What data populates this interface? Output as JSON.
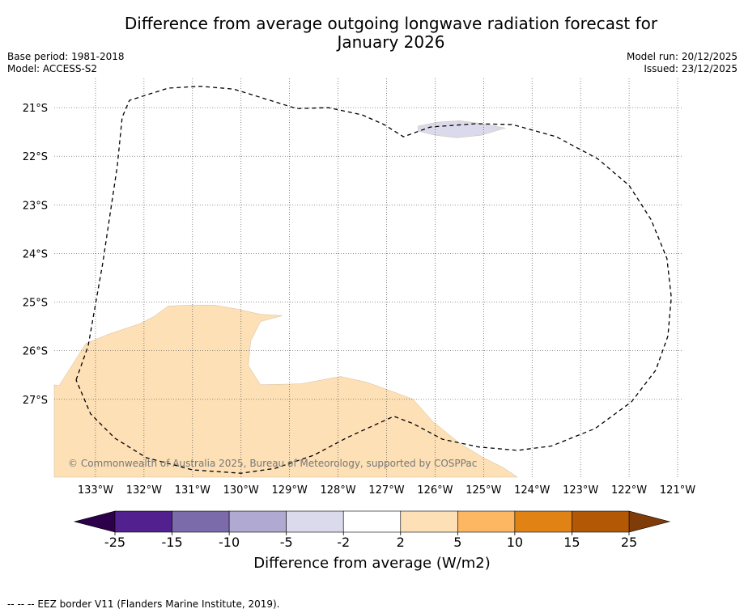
{
  "chart_data": {
    "type": "heatmap",
    "title_line1": "Difference from average outgoing longwave radiation forecast for",
    "title_line2": "January 2026",
    "base_period": "Base period: 1981-2018",
    "model": "Model: ACCESS-S2",
    "model_run": "Model run: 20/12/2025",
    "issued": "Issued: 23/12/2025",
    "lon_range": [
      -133.85,
      -120.9
    ],
    "lat_range": [
      -28.6,
      -20.4
    ],
    "lon_ticks": [
      -133,
      -132,
      -131,
      -130,
      -129,
      -128,
      -127,
      -126,
      -125,
      -124,
      -123,
      -122,
      -121
    ],
    "lon_tick_labels": [
      "133°W",
      "132°W",
      "131°W",
      "130°W",
      "129°W",
      "128°W",
      "127°W",
      "126°W",
      "125°W",
      "124°W",
      "123°W",
      "122°W",
      "121°W"
    ],
    "lat_ticks": [
      -21,
      -22,
      -23,
      -24,
      -25,
      -26,
      -27
    ],
    "lat_tick_labels": [
      "21°S",
      "22°S",
      "23°S",
      "24°S",
      "25°S",
      "26°S",
      "27°S"
    ],
    "credit": "© Commonwealth of Australia 2025, Bureau of Meteorology, supported by COSPPac",
    "colorbar": {
      "label": "Difference from average (W/m2)",
      "bounds": [
        -25,
        -15,
        -10,
        -5,
        -2,
        2,
        5,
        10,
        15,
        25
      ],
      "tick_labels": [
        "-25",
        "-15",
        "-10",
        "-5",
        "-2",
        "2",
        "5",
        "10",
        "15",
        "25"
      ],
      "colors": [
        "#53218f",
        "#7c6bab",
        "#b0a9d1",
        "#dadaec",
        "#ffffff",
        "#fde0b6",
        "#fdb763",
        "#e08314",
        "#b35906"
      ],
      "under_color": "#2d004b",
      "over_color": "#7f3b08"
    },
    "regions": [
      {
        "name": "warm anomaly 2 to 5 W/m2",
        "category": "2 to 5",
        "color": "#fde0b6",
        "points": [
          [
            -133.85,
            -26.7
          ],
          [
            -133.75,
            -26.72
          ],
          [
            -133.2,
            -25.85
          ],
          [
            -132.7,
            -25.65
          ],
          [
            -132.1,
            -25.45
          ],
          [
            -131.8,
            -25.3
          ],
          [
            -131.5,
            -25.08
          ],
          [
            -131.0,
            -25.06
          ],
          [
            -130.55,
            -25.06
          ],
          [
            -130.05,
            -25.15
          ],
          [
            -129.6,
            -25.25
          ],
          [
            -129.15,
            -25.28
          ],
          [
            -129.6,
            -25.4
          ],
          [
            -129.8,
            -25.8
          ],
          [
            -129.85,
            -26.3
          ],
          [
            -129.6,
            -26.7
          ],
          [
            -128.75,
            -26.68
          ],
          [
            -127.95,
            -26.53
          ],
          [
            -127.4,
            -26.65
          ],
          [
            -126.85,
            -26.85
          ],
          [
            -126.45,
            -27.0
          ],
          [
            -126.05,
            -27.45
          ],
          [
            -125.5,
            -27.9
          ],
          [
            -125.0,
            -28.2
          ],
          [
            -124.6,
            -28.4
          ],
          [
            -124.3,
            -28.6
          ],
          [
            -133.85,
            -28.6
          ]
        ]
      },
      {
        "name": "cool anomaly -5 to -2 W/m2",
        "category": "-5 to -2",
        "color": "#dadaec",
        "points": [
          [
            -126.35,
            -21.38
          ],
          [
            -125.95,
            -21.3
          ],
          [
            -125.5,
            -21.27
          ],
          [
            -125.1,
            -21.32
          ],
          [
            -124.55,
            -21.42
          ],
          [
            -125.05,
            -21.57
          ],
          [
            -125.55,
            -21.62
          ],
          [
            -126.0,
            -21.57
          ],
          [
            -126.35,
            -21.48
          ]
        ]
      }
    ],
    "eez_border": [
      [
        -133.4,
        -26.6
      ],
      [
        -133.15,
        -25.9
      ],
      [
        -132.85,
        -24.2
      ],
      [
        -132.55,
        -22.2
      ],
      [
        -132.45,
        -21.2
      ],
      [
        -132.3,
        -20.85
      ],
      [
        -131.5,
        -20.6
      ],
      [
        -130.85,
        -20.56
      ],
      [
        -130.15,
        -20.62
      ],
      [
        -129.4,
        -20.85
      ],
      [
        -128.85,
        -21.02
      ],
      [
        -128.2,
        -21.0
      ],
      [
        -127.5,
        -21.15
      ],
      [
        -127.05,
        -21.35
      ],
      [
        -126.65,
        -21.6
      ],
      [
        -126.1,
        -21.4
      ],
      [
        -125.15,
        -21.33
      ],
      [
        -124.4,
        -21.35
      ],
      [
        -123.5,
        -21.6
      ],
      [
        -122.65,
        -22.05
      ],
      [
        -122.0,
        -22.6
      ],
      [
        -121.55,
        -23.3
      ],
      [
        -121.22,
        -24.1
      ],
      [
        -121.13,
        -24.9
      ],
      [
        -121.2,
        -25.7
      ],
      [
        -121.45,
        -26.4
      ],
      [
        -121.95,
        -27.05
      ],
      [
        -122.7,
        -27.6
      ],
      [
        -123.6,
        -27.96
      ],
      [
        -124.3,
        -28.05
      ],
      [
        -125.1,
        -27.98
      ],
      [
        -125.85,
        -27.82
      ],
      [
        -126.45,
        -27.5
      ],
      [
        -126.85,
        -27.35
      ],
      [
        -127.8,
        -27.78
      ],
      [
        -128.5,
        -28.15
      ],
      [
        -129.3,
        -28.42
      ],
      [
        -130.0,
        -28.52
      ],
      [
        -131.0,
        -28.45
      ],
      [
        -131.95,
        -28.2
      ],
      [
        -132.6,
        -27.8
      ],
      [
        -133.1,
        -27.3
      ],
      [
        -133.4,
        -26.6
      ]
    ],
    "footer": "--  --  -- EEZ border V11 (Flanders Marine Institute, 2019)."
  }
}
